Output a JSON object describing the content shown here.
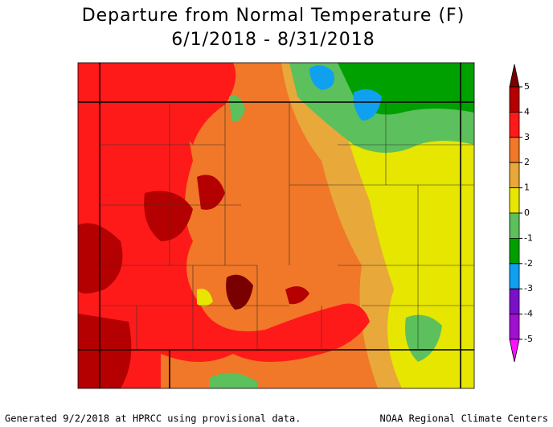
{
  "header": {
    "title": "Departure from Normal Temperature (F)",
    "subtitle": "6/1/2018 - 8/31/2018"
  },
  "legend": {
    "levels": [
      5,
      4,
      3,
      2,
      1,
      0,
      -1,
      -2,
      -3,
      -4,
      -5
    ],
    "colors": [
      "#7a0000",
      "#b40000",
      "#ff1a1a",
      "#f07828",
      "#e8a83a",
      "#e6e600",
      "#5cc05c",
      "#00a000",
      "#10a0f0",
      "#7a10c8",
      "#a010d0",
      "#ff10ff"
    ]
  },
  "footer": {
    "left": "Generated 9/2/2018 at HPRCC using provisional data.",
    "right": "NOAA Regional Climate Centers"
  }
}
